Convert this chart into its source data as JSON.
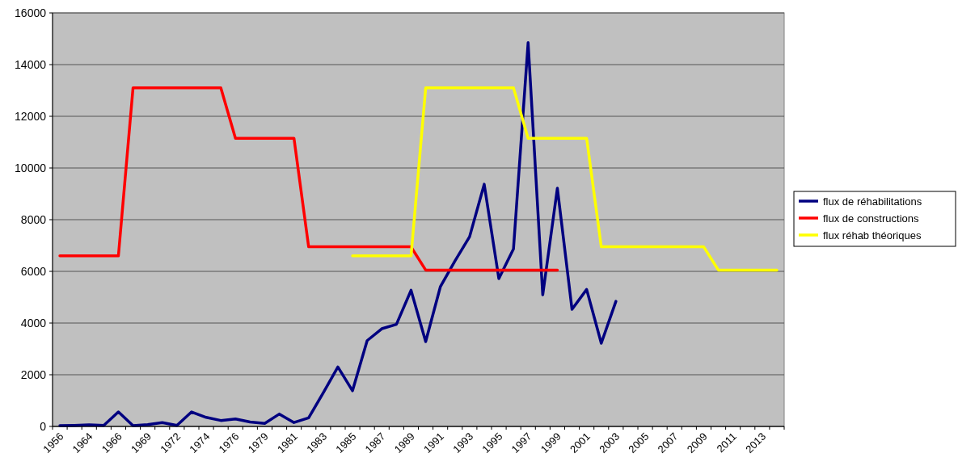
{
  "chart_data": {
    "type": "line",
    "categories": [
      "1956",
      null,
      "1964",
      null,
      "1966",
      null,
      "1969",
      null,
      "1972",
      null,
      "1974",
      null,
      "1976",
      null,
      "1979",
      null,
      "1981",
      null,
      "1983",
      null,
      "1985",
      null,
      "1987",
      null,
      "1989",
      null,
      "1991",
      null,
      "1993",
      null,
      "1995",
      null,
      "1997",
      null,
      "1999",
      null,
      "2001",
      null,
      "2003",
      null,
      "2005",
      null,
      "2007",
      null,
      "2009",
      null,
      "2011",
      null,
      "2013",
      null
    ],
    "series": [
      {
        "name": "flux de réhabilitations",
        "color": "#000080",
        "values": [
          30,
          40,
          60,
          40,
          560,
          30,
          70,
          150,
          40,
          560,
          350,
          230,
          290,
          170,
          120,
          480,
          150,
          330,
          1300,
          2300,
          1380,
          3320,
          3780,
          3950,
          5270,
          3280,
          5400,
          6400,
          7340,
          9370,
          5720,
          6870,
          14850,
          5090,
          9220,
          4530,
          5300,
          3220,
          4840,
          null,
          null,
          null,
          null,
          null,
          null,
          null,
          null,
          null,
          null,
          null
        ]
      },
      {
        "name": "flux de constructions",
        "color": "#ff0000",
        "values": [
          6600,
          6600,
          6600,
          6600,
          6600,
          13100,
          13100,
          13100,
          13100,
          13100,
          13100,
          13100,
          11150,
          11150,
          11150,
          11150,
          11150,
          6950,
          6950,
          6950,
          6950,
          6950,
          6950,
          6950,
          6950,
          6050,
          6050,
          6050,
          6050,
          6050,
          6050,
          6050,
          6050,
          6050,
          6050,
          null,
          null,
          null,
          null,
          null,
          null,
          null,
          null,
          null,
          null,
          null,
          null,
          null,
          null,
          null
        ]
      },
      {
        "name": "flux réhab théoriques",
        "color": "#ffff00",
        "values": [
          null,
          null,
          null,
          null,
          null,
          null,
          null,
          null,
          null,
          null,
          null,
          null,
          null,
          null,
          null,
          null,
          null,
          null,
          null,
          null,
          6600,
          6600,
          6600,
          6600,
          6600,
          13100,
          13100,
          13100,
          13100,
          13100,
          13100,
          13100,
          11150,
          11150,
          11150,
          11150,
          11150,
          6950,
          6950,
          6950,
          6950,
          6950,
          6950,
          6950,
          6950,
          6050,
          6050,
          6050,
          6050,
          6050
        ]
      }
    ],
    "ylim": [
      0,
      16000
    ],
    "yticks": [
      0,
      2000,
      4000,
      6000,
      8000,
      10000,
      12000,
      14000,
      16000
    ],
    "grid": "y",
    "legend": "right",
    "marker": "none",
    "line_style": "solid"
  }
}
